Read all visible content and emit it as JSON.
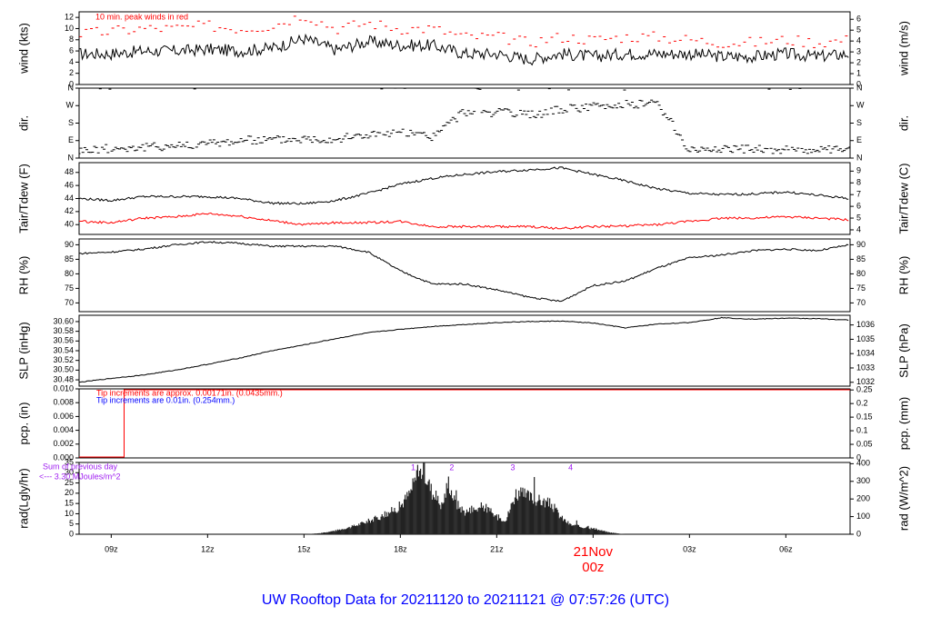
{
  "title": "UW Rooftop Data for 20211120  to  20211121 @ 07:57:26  (UTC)",
  "colors": {
    "frame": "#000000",
    "trace": "#000000",
    "red": "#ff0000",
    "blue": "#0000ff",
    "purple": "#a020f0",
    "title": "#0000ff"
  },
  "x_axis": {
    "ticks": [
      "09z",
      "12z",
      "15z",
      "18z",
      "21z",
      "21Nov",
      "03z",
      "06z"
    ],
    "tick_hours": [
      9,
      12,
      15,
      18,
      21,
      24,
      27,
      30
    ],
    "date_label": "21Nov",
    "date_sublabel": "00z",
    "xlim": [
      8,
      32
    ]
  },
  "panels": [
    {
      "id": "wind",
      "ylabel_left": "wind (kts)",
      "ylabel_right": "wind (m/s)",
      "left_ticks": [
        "0",
        "2",
        "4",
        "6",
        "8",
        "10",
        "12"
      ],
      "right_ticks": [
        "0",
        "1",
        "2",
        "3",
        "4",
        "5",
        "6"
      ],
      "ylim": [
        0,
        13
      ],
      "annotation": "10 min. peak winds in red"
    },
    {
      "id": "dir",
      "ylabel_left": "dir.",
      "ylabel_right": "dir.",
      "left_ticks": [
        "N",
        "E",
        "S",
        "W",
        "N"
      ],
      "right_ticks": [
        "N",
        "E",
        "S",
        "W",
        "N"
      ],
      "ylim": [
        0,
        360
      ]
    },
    {
      "id": "temp",
      "ylabel_left": "Tair/Tdew (F)",
      "ylabel_right": "Tair/Tdew (C)",
      "left_ticks": [
        "40",
        "42",
        "44",
        "46",
        "48"
      ],
      "right_ticks": [
        "4",
        "5",
        "6",
        "7",
        "8",
        "9"
      ],
      "ylim": [
        38.5,
        49.5
      ]
    },
    {
      "id": "rh",
      "ylabel_left": "RH (%)",
      "ylabel_right": "RH (%)",
      "left_ticks": [
        "70",
        "75",
        "80",
        "85",
        "90"
      ],
      "right_ticks": [
        "70",
        "75",
        "80",
        "85",
        "90"
      ],
      "ylim": [
        67,
        92
      ]
    },
    {
      "id": "slp",
      "ylabel_left": "SLP (inHg)",
      "ylabel_right": "SLP (hPa)",
      "left_ticks": [
        "30.48",
        "30.50",
        "30.52",
        "30.54",
        "30.56",
        "30.58",
        "30.60"
      ],
      "right_ticks": [
        "1032",
        "1033",
        "1034",
        "1035",
        "1036"
      ],
      "ylim": [
        30.467,
        30.613
      ]
    },
    {
      "id": "pcp",
      "ylabel_left": "pcp. (in)",
      "ylabel_right": "pcp. (mm)",
      "left_ticks": [
        "0.000",
        "0.002",
        "0.004",
        "0.006",
        "0.008",
        "0.010"
      ],
      "right_ticks": [
        "0",
        "0.05",
        "0.1",
        "0.15",
        "0.2",
        "0.25"
      ],
      "ylim": [
        0,
        0.01
      ],
      "note_red": "Tip increments are approx. 0.00171in. (0.0435mm.)",
      "note_blue": "Tip increments are 0.01in. (0.254mm.)"
    },
    {
      "id": "rad",
      "ylabel_left": "rad(Lgly/hr)",
      "ylabel_right": "rad (W/m^2)",
      "left_ticks": [
        "0",
        "5",
        "10",
        "15",
        "20",
        "25",
        "30",
        "35"
      ],
      "right_ticks": [
        "0",
        "100",
        "200",
        "300",
        "400"
      ],
      "ylim": [
        0,
        35
      ],
      "sum_line1": "Sum of previous day",
      "sum_line2": "<--- 3.30 MJoules/m^2",
      "markers": [
        "1",
        "2",
        "3",
        "4"
      ],
      "marker_hours": [
        18.4,
        19.6,
        21.5,
        23.3
      ]
    }
  ],
  "chart_data": [
    {
      "type": "line",
      "title": "",
      "xlabel": "",
      "ylabel": "wind (kts)",
      "x": [
        8,
        9,
        10,
        11,
        12,
        13,
        14,
        15,
        16,
        17,
        18,
        19,
        20,
        21,
        22,
        23,
        24,
        25,
        26,
        27,
        28,
        29,
        30,
        31,
        32
      ],
      "series": [
        {
          "values": [
            5.5,
            5.5,
            6,
            6,
            6.3,
            6,
            6.5,
            8.2,
            6.2,
            7.7,
            7,
            7,
            5.5,
            5.5,
            4.5,
            5.5,
            5,
            5.5,
            5.5,
            5.5,
            5,
            5,
            5.5,
            5,
            5.5
          ]
        },
        {
          "name": "10 min. peak winds in red",
          "values": [
            9,
            9.5,
            10,
            10,
            10.5,
            10,
            10.5,
            12.5,
            10,
            11,
            10,
            10,
            8.5,
            8.5,
            7.5,
            8.5,
            8,
            8.5,
            8.5,
            8,
            7.5,
            7.5,
            8,
            7.5,
            8
          ]
        }
      ],
      "ylim": [
        0,
        13
      ]
    },
    {
      "type": "scatter",
      "title": "",
      "xlabel": "",
      "ylabel": "dir.",
      "x": [
        8,
        9,
        10,
        11,
        12,
        13,
        14,
        15,
        16,
        17,
        18,
        19,
        20,
        21,
        22,
        23,
        24,
        25,
        26,
        27,
        28,
        29,
        30,
        31,
        32
      ],
      "series": [
        {
          "values": [
            40,
            50,
            55,
            65,
            75,
            90,
            95,
            100,
            100,
            120,
            130,
            110,
            240,
            235,
            220,
            250,
            265,
            275,
            285,
            40,
            50,
            45,
            45,
            40,
            40
          ]
        }
      ],
      "ylim": [
        0,
        360
      ]
    },
    {
      "type": "line",
      "title": "",
      "xlabel": "",
      "ylabel": "Tair/Tdew (F)",
      "x": [
        8,
        9,
        10,
        11,
        12,
        13,
        14,
        15,
        16,
        17,
        18,
        19,
        20,
        21,
        22,
        23,
        24,
        25,
        26,
        27,
        28,
        29,
        30,
        31,
        32
      ],
      "series": [
        {
          "name": "Tair",
          "values": [
            44,
            43.7,
            44.3,
            44.3,
            44.3,
            44,
            43.3,
            43.2,
            43.7,
            44.8,
            46.2,
            47.1,
            47.7,
            48.1,
            48.4,
            48.7,
            47.7,
            46.7,
            45.5,
            44.8,
            44.6,
            44.7,
            45,
            44.5,
            44
          ]
        },
        {
          "name": "Tdew",
          "values": [
            40.5,
            40.3,
            41,
            41.2,
            41.7,
            41.3,
            40.6,
            40,
            40.3,
            40.3,
            40.5,
            39.7,
            39.7,
            39.7,
            39.7,
            39.4,
            39.7,
            39.8,
            40,
            40.5,
            41,
            41,
            41.2,
            41,
            40.7
          ]
        }
      ],
      "ylim": [
        38.5,
        49.5
      ]
    },
    {
      "type": "line",
      "title": "",
      "xlabel": "",
      "ylabel": "RH (%)",
      "x": [
        8,
        9,
        10,
        11,
        12,
        13,
        14,
        15,
        16,
        17,
        18,
        19,
        20,
        21,
        22,
        23,
        24,
        25,
        26,
        27,
        28,
        29,
        30,
        31,
        32
      ],
      "series": [
        {
          "values": [
            87,
            87.5,
            88.5,
            90,
            91,
            90.5,
            89.5,
            89.5,
            89.5,
            87.5,
            81,
            76.5,
            76.5,
            74.5,
            72,
            70.5,
            76,
            77.5,
            82,
            85.5,
            86.5,
            88,
            88.5,
            88,
            90
          ]
        }
      ],
      "ylim": [
        67,
        92
      ]
    },
    {
      "type": "line",
      "title": "",
      "xlabel": "",
      "ylabel": "SLP (inHg)",
      "x": [
        8,
        9,
        10,
        11,
        12,
        13,
        14,
        15,
        16,
        17,
        18,
        19,
        20,
        21,
        22,
        23,
        24,
        25,
        26,
        27,
        28,
        29,
        30,
        31,
        32
      ],
      "series": [
        {
          "values": [
            30.475,
            30.483,
            30.49,
            30.5,
            30.512,
            30.525,
            30.54,
            30.552,
            30.565,
            30.577,
            30.584,
            30.59,
            30.594,
            30.598,
            30.6,
            30.601,
            30.597,
            30.587,
            30.595,
            30.598,
            30.608,
            30.605,
            30.607,
            30.606,
            30.603
          ]
        }
      ],
      "ylim": [
        30.467,
        30.613
      ]
    },
    {
      "type": "line",
      "title": "",
      "xlabel": "",
      "ylabel": "pcp. (in)",
      "x": [
        8,
        9.4,
        9.4,
        32
      ],
      "series": [
        {
          "values": [
            0,
            0,
            0.01,
            0.01
          ]
        }
      ],
      "ylim": [
        0,
        0.01
      ]
    },
    {
      "type": "area",
      "title": "",
      "xlabel": "",
      "ylabel": "rad(Lgly/hr)",
      "x": [
        15,
        15.5,
        16,
        16.5,
        17,
        17.5,
        18,
        18.3,
        18.5,
        18.7,
        19,
        19.3,
        19.5,
        19.7,
        20,
        20.3,
        20.6,
        21,
        21.3,
        21.6,
        22,
        22.3,
        22.7,
        23,
        23.3,
        23.6,
        24,
        24.5,
        25
      ],
      "series": [
        {
          "values": [
            0,
            0.5,
            2,
            4,
            7,
            10,
            15,
            22,
            30,
            35,
            22,
            15,
            28,
            17,
            12,
            13,
            15,
            9,
            8,
            22,
            20,
            18,
            16,
            9,
            5,
            4,
            3,
            1,
            0
          ]
        }
      ],
      "ylim": [
        0,
        35
      ]
    }
  ]
}
